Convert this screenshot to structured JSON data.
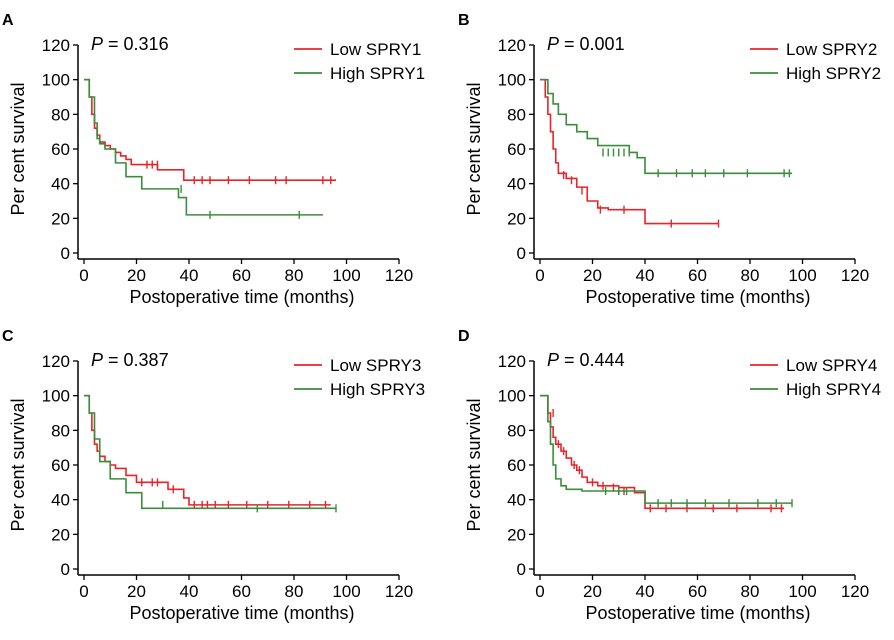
{
  "chart_data": [
    {
      "type": "line",
      "panel": "A",
      "pvalue": "0.316",
      "xlabel": "Postoperative time (months)",
      "ylabel": "Per cent survival",
      "xlim": [
        0,
        120
      ],
      "ylim": [
        0,
        120
      ],
      "xticks": [
        0,
        20,
        40,
        60,
        80,
        100,
        120
      ],
      "yticks": [
        0,
        20,
        40,
        60,
        80,
        100,
        120
      ],
      "legend_position": "top-right",
      "series": [
        {
          "name": "Low SPRY1",
          "color": "#e8242a",
          "x": [
            0,
            2,
            3,
            4,
            5,
            6,
            8,
            10,
            12,
            14,
            16,
            18,
            22,
            28,
            38,
            96
          ],
          "y": [
            100,
            90,
            80,
            72,
            68,
            64,
            62,
            60,
            58,
            56,
            54,
            51,
            51,
            48,
            42,
            42
          ],
          "censors": [
            [
              24,
              51
            ],
            [
              26,
              51
            ],
            [
              28,
              51
            ],
            [
              42,
              42
            ],
            [
              45,
              42
            ],
            [
              48,
              42
            ],
            [
              55,
              42
            ],
            [
              63,
              42
            ],
            [
              73,
              42
            ],
            [
              77,
              42
            ],
            [
              91,
              42
            ],
            [
              94,
              42
            ]
          ]
        },
        {
          "name": "High SPRY1",
          "color": "#3a8d3a",
          "x": [
            0,
            2,
            4,
            5,
            6,
            8,
            12,
            16,
            22,
            36,
            39,
            91
          ],
          "y": [
            100,
            90,
            75,
            66,
            63,
            60,
            52,
            44,
            37,
            32,
            22,
            22
          ],
          "censors": [
            [
              37,
              37
            ],
            [
              48,
              22
            ],
            [
              82,
              22
            ]
          ]
        }
      ]
    },
    {
      "type": "line",
      "panel": "B",
      "pvalue": "0.001",
      "xlabel": "Postoperative time (months)",
      "ylabel": "Per cent survival",
      "xlim": [
        0,
        120
      ],
      "ylim": [
        0,
        120
      ],
      "xticks": [
        0,
        20,
        40,
        60,
        80,
        100,
        120
      ],
      "yticks": [
        0,
        20,
        40,
        60,
        80,
        100,
        120
      ],
      "legend_position": "top-right",
      "series": [
        {
          "name": "Low SPRY2",
          "color": "#e8242a",
          "x": [
            0,
            2,
            3,
            4,
            5,
            6,
            7,
            10,
            14,
            18,
            22,
            26,
            38,
            40,
            68
          ],
          "y": [
            100,
            90,
            80,
            70,
            60,
            52,
            46,
            43,
            38,
            30,
            26,
            25,
            25,
            17,
            17
          ],
          "censors": [
            [
              9,
              45
            ],
            [
              12,
              42
            ],
            [
              16,
              36
            ],
            [
              23,
              25
            ],
            [
              32,
              25
            ],
            [
              50,
              17
            ],
            [
              68,
              17
            ]
          ]
        },
        {
          "name": "High SPRY2",
          "color": "#3a8d3a",
          "x": [
            0,
            3,
            5,
            7,
            10,
            14,
            18,
            22,
            34,
            37,
            40,
            96
          ],
          "y": [
            100,
            92,
            86,
            80,
            74,
            70,
            66,
            62,
            58,
            55,
            46,
            46
          ],
          "censors": [
            [
              24,
              58
            ],
            [
              26,
              58
            ],
            [
              28,
              58
            ],
            [
              30,
              58
            ],
            [
              32,
              58
            ],
            [
              34,
              58
            ],
            [
              45,
              46
            ],
            [
              52,
              46
            ],
            [
              58,
              46
            ],
            [
              63,
              46
            ],
            [
              70,
              46
            ],
            [
              79,
              46
            ],
            [
              93,
              46
            ],
            [
              95,
              46
            ]
          ]
        }
      ]
    },
    {
      "type": "line",
      "panel": "C",
      "pvalue": "0.387",
      "xlabel": "Postoperative time (months)",
      "ylabel": "Per cent survival",
      "xlim": [
        0,
        120
      ],
      "ylim": [
        0,
        120
      ],
      "xticks": [
        0,
        20,
        40,
        60,
        80,
        100,
        120
      ],
      "yticks": [
        0,
        20,
        40,
        60,
        80,
        100,
        120
      ],
      "legend_position": "top-right",
      "series": [
        {
          "name": "Low SPRY3",
          "color": "#e8242a",
          "x": [
            0,
            2,
            3,
            4,
            5,
            6,
            8,
            10,
            12,
            16,
            20,
            32,
            38,
            40,
            94
          ],
          "y": [
            100,
            90,
            80,
            72,
            68,
            65,
            62,
            60,
            58,
            54,
            50,
            46,
            41,
            37,
            37
          ],
          "censors": [
            [
              22,
              50
            ],
            [
              26,
              50
            ],
            [
              28,
              50
            ],
            [
              34,
              46
            ],
            [
              42,
              37
            ],
            [
              45,
              37
            ],
            [
              47,
              37
            ],
            [
              50,
              37
            ],
            [
              55,
              37
            ],
            [
              62,
              37
            ],
            [
              70,
              37
            ],
            [
              78,
              37
            ],
            [
              86,
              37
            ],
            [
              92,
              37
            ]
          ]
        },
        {
          "name": "High SPRY3",
          "color": "#3a8d3a",
          "x": [
            0,
            2,
            4,
            6,
            10,
            16,
            22,
            96
          ],
          "y": [
            100,
            90,
            75,
            62,
            52,
            44,
            35,
            35
          ],
          "censors": [
            [
              30,
              37
            ],
            [
              66,
              35
            ],
            [
              96,
              35
            ]
          ]
        }
      ]
    },
    {
      "type": "line",
      "panel": "D",
      "pvalue": "0.444",
      "xlabel": "Postoperative time (months)",
      "ylabel": "Per cent survival",
      "xlim": [
        0,
        120
      ],
      "ylim": [
        0,
        120
      ],
      "xticks": [
        0,
        20,
        40,
        60,
        80,
        100,
        120
      ],
      "yticks": [
        0,
        20,
        40,
        60,
        80,
        100,
        120
      ],
      "legend_position": "top-right",
      "series": [
        {
          "name": "Low SPRY4",
          "color": "#e8242a",
          "x": [
            0,
            3,
            4,
            5,
            6,
            8,
            10,
            12,
            14,
            16,
            18,
            22,
            30,
            36,
            40,
            93
          ],
          "y": [
            100,
            90,
            82,
            76,
            72,
            68,
            64,
            60,
            57,
            53,
            50,
            48,
            47,
            44,
            35,
            35
          ],
          "censors": [
            [
              5,
              90
            ],
            [
              7,
              72
            ],
            [
              9,
              68
            ],
            [
              13,
              60
            ],
            [
              15,
              57
            ],
            [
              20,
              50
            ],
            [
              24,
              48
            ],
            [
              28,
              47
            ],
            [
              30,
              45
            ],
            [
              32,
              45
            ],
            [
              42,
              35
            ],
            [
              48,
              35
            ],
            [
              56,
              35
            ],
            [
              66,
              35
            ],
            [
              75,
              35
            ],
            [
              88,
              35
            ],
            [
              92,
              35
            ]
          ]
        },
        {
          "name": "High SPRY4",
          "color": "#3a8d3a",
          "x": [
            0,
            3,
            4,
            5,
            6,
            8,
            10,
            16,
            38,
            40,
            96
          ],
          "y": [
            100,
            85,
            72,
            60,
            52,
            48,
            46,
            45,
            45,
            38,
            38
          ],
          "censors": [
            [
              25,
              45
            ],
            [
              30,
              45
            ],
            [
              33,
              45
            ],
            [
              45,
              38
            ],
            [
              50,
              38
            ],
            [
              56,
              38
            ],
            [
              63,
              38
            ],
            [
              72,
              38
            ],
            [
              83,
              38
            ],
            [
              90,
              38
            ],
            [
              96,
              38
            ]
          ]
        }
      ]
    }
  ]
}
